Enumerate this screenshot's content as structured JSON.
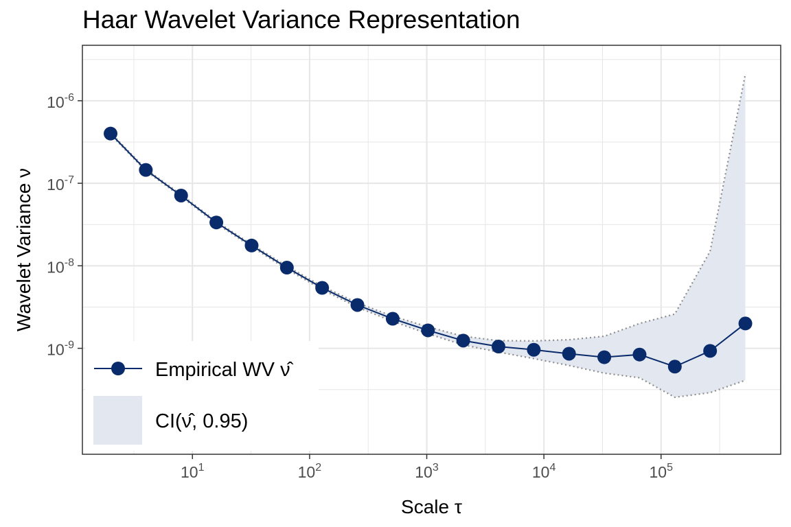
{
  "chart_data": {
    "type": "line",
    "title": "Haar Wavelet Variance Representation",
    "xlabel": "Scale τ",
    "ylabel": "Wavelet Variance ν",
    "x_scale": "log10",
    "y_scale": "log10",
    "xlim": [
      1.15,
      1050000
    ],
    "ylim": [
      5.2e-11,
      4.7e-06
    ],
    "grid": true,
    "legend_position": "bottom-left",
    "x_ticks": [
      {
        "value": 10,
        "base": "10",
        "exp": "1"
      },
      {
        "value": 100,
        "base": "10",
        "exp": "2"
      },
      {
        "value": 1000,
        "base": "10",
        "exp": "3"
      },
      {
        "value": 10000,
        "base": "10",
        "exp": "4"
      },
      {
        "value": 100000,
        "base": "10",
        "exp": "5"
      }
    ],
    "y_ticks": [
      {
        "value": 1e-06,
        "base": "10",
        "exp": "-6"
      },
      {
        "value": 1e-07,
        "base": "10",
        "exp": "-7"
      },
      {
        "value": 1e-08,
        "base": "10",
        "exp": "-8"
      },
      {
        "value": 1e-09,
        "base": "10",
        "exp": "-9"
      }
    ],
    "x": [
      2,
      4,
      8,
      16,
      32,
      64,
      128,
      256,
      512,
      1024,
      2048,
      4096,
      8192,
      16384,
      32768,
      65536,
      131072,
      262144,
      524288
    ],
    "series": [
      {
        "name": "Empirical WV ν̂",
        "values": [
          4e-07,
          1.45e-07,
          7.1e-08,
          3.35e-08,
          1.76e-08,
          9.5e-09,
          5.4e-09,
          3.35e-09,
          2.28e-09,
          1.65e-09,
          1.24e-09,
          1.05e-09,
          9.6e-10,
          8.6e-10,
          7.8e-10,
          8.4e-10,
          6e-10,
          9.3e-10,
          2e-09
        ]
      }
    ],
    "confidence_interval": {
      "name": "CI(ν̂, 0.95)",
      "level": 0.95,
      "lower": [
        3.9e-07,
        1.41e-07,
        6.9e-08,
        3.25e-08,
        1.7e-08,
        9.1e-09,
        5.15e-09,
        3.15e-09,
        2.12e-09,
        1.5e-09,
        1.1e-09,
        9e-10,
        7.5e-10,
        6.2e-10,
        5e-10,
        4.4e-10,
        2.55e-10,
        2.9e-10,
        4.1e-10
      ],
      "upper": [
        4.1e-07,
        1.49e-07,
        7.3e-08,
        3.45e-08,
        1.82e-08,
        9.9e-09,
        5.65e-09,
        3.55e-09,
        2.45e-09,
        1.82e-09,
        1.4e-09,
        1.24e-09,
        1.23e-09,
        1.27e-09,
        1.4e-09,
        2e-09,
        2.6e-09,
        1.5e-08,
        2.1e-06
      ]
    },
    "colors": {
      "series": "#0a2b6b",
      "ci_fill": "#e3e8f0",
      "ci_line": "#8c8c8c",
      "grid": "#e6e6e6",
      "panel_border": "#333333"
    }
  },
  "legend": {
    "empirical_label": "Empirical WV ",
    "empirical_symbol": "ν̂",
    "ci_label_prefix": "CI(",
    "ci_symbol": "ν̂",
    "ci_label_suffix": ", 0.95)"
  }
}
